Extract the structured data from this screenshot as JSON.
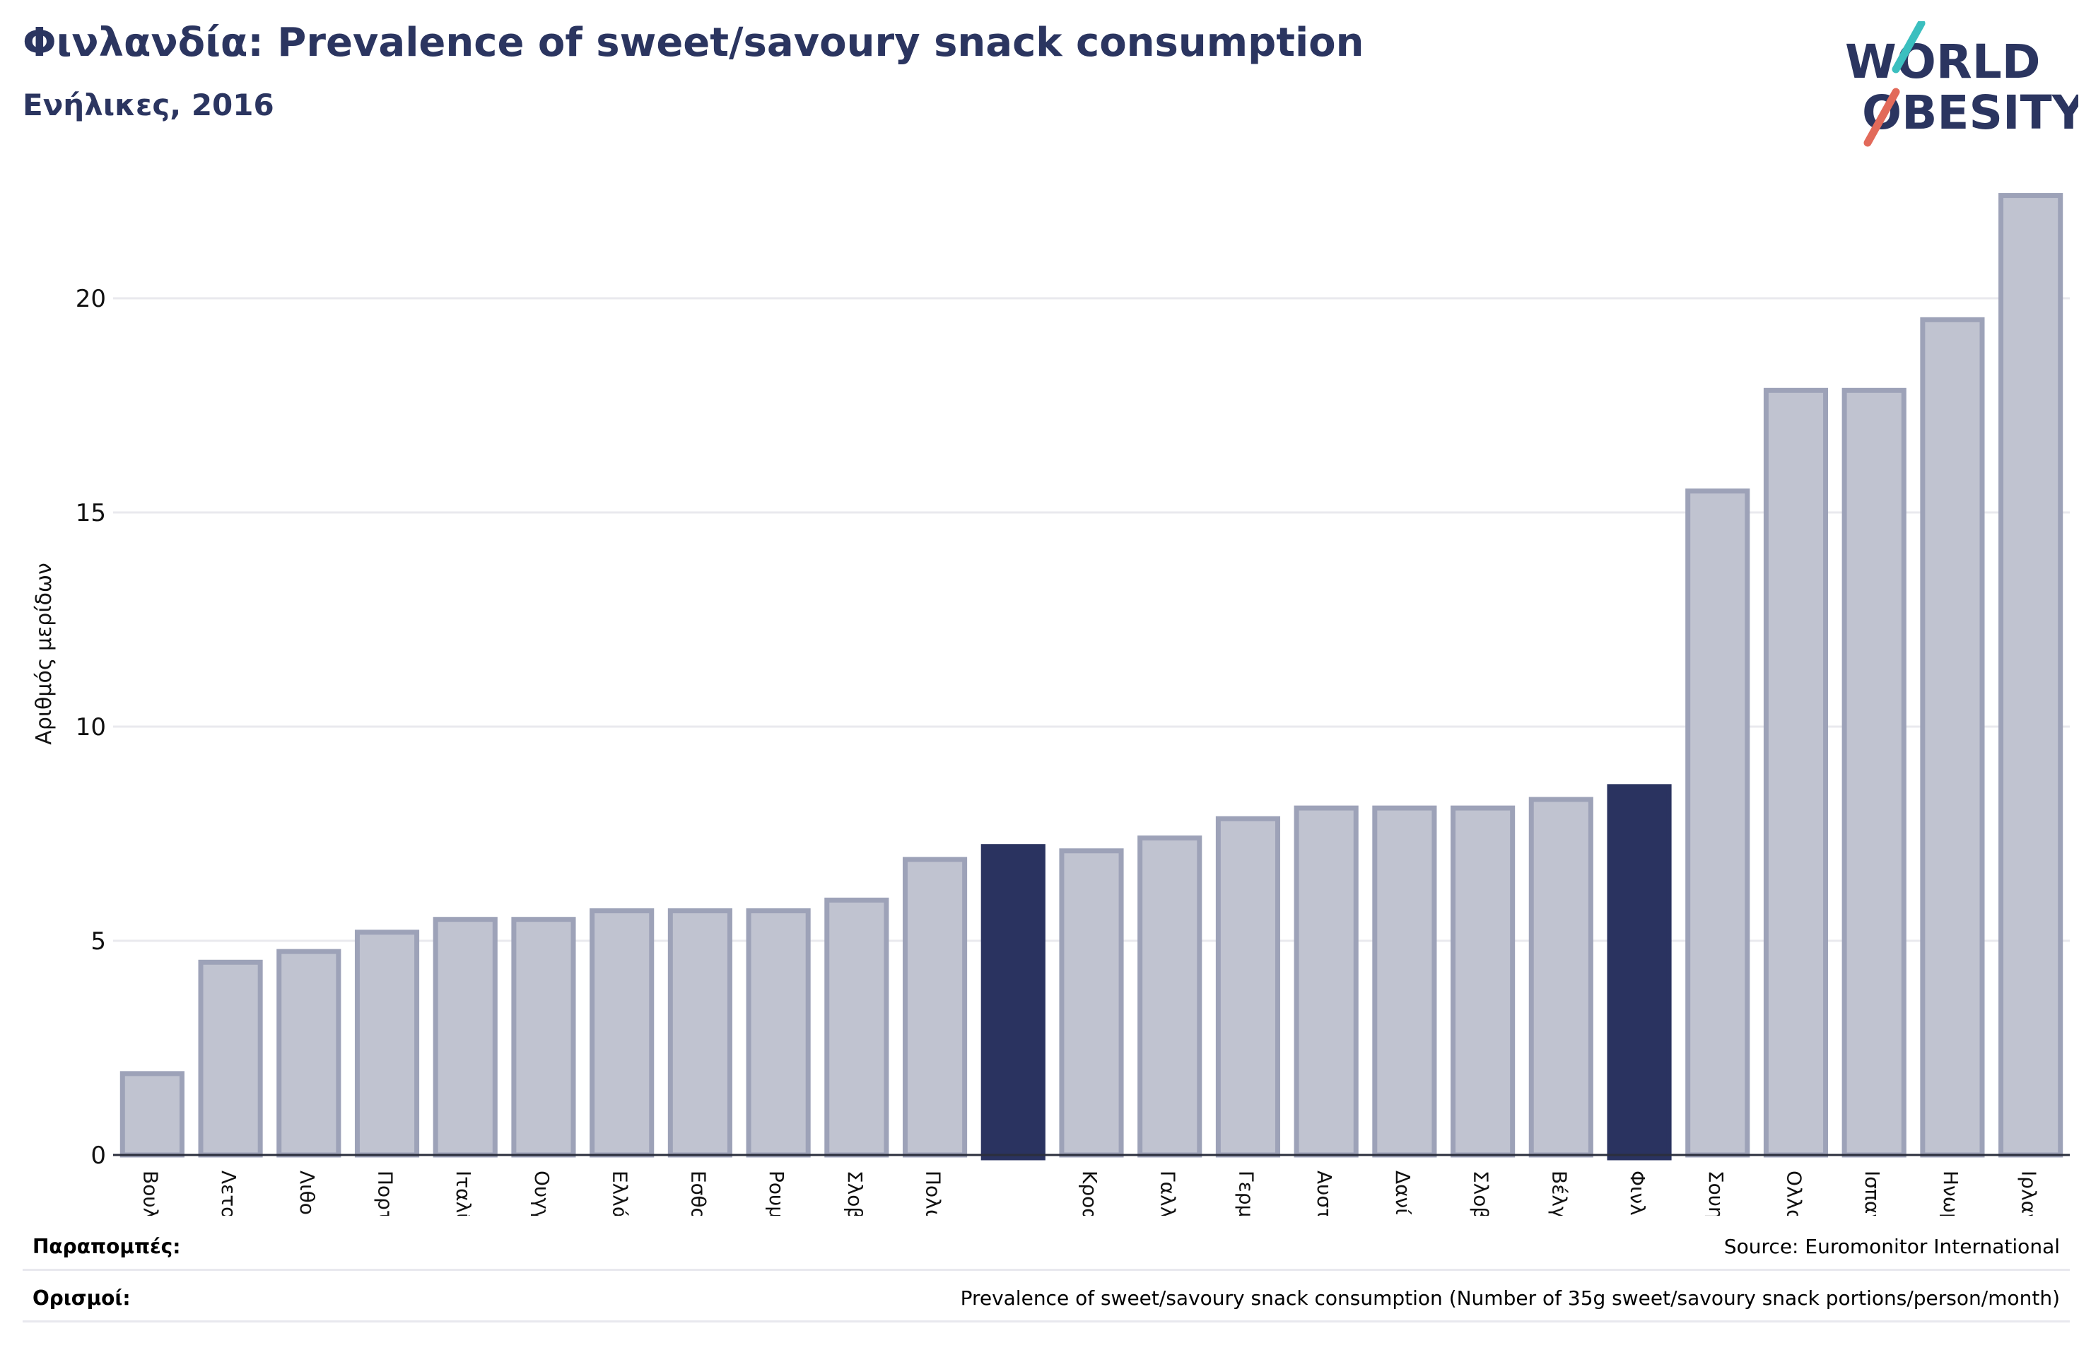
{
  "header": {
    "title": "Φινλανδία: Prevalence of sweet/savoury snack consumption",
    "subtitle": "Ενήλικες, 2016",
    "logo_line1": "WORLD",
    "logo_line2": "OBESITY"
  },
  "colors": {
    "bar": "#c0c3d0",
    "bar_border": "#9da2b8",
    "highlight": "#2a3360",
    "text_dark": "#2b3560",
    "grid": "#e9e9ee",
    "logo_teal": "#3bbfbf",
    "logo_red": "#e26a5a"
  },
  "chart_data": {
    "type": "bar",
    "ylabel": "Αριθμός μερίδων",
    "ylim": [
      0,
      22.5
    ],
    "yticks": [
      0,
      5,
      10,
      15,
      20
    ],
    "grid": true,
    "categories": [
      "Βουλγαρία",
      "Λετονία",
      "Λιθουανία",
      "Πορτογαλία",
      "Ιταλία",
      "Ουγγαρία",
      "Ελλάδα",
      "Εσθονία",
      "Ρουμανία",
      "Σλοβενία",
      "Πολωνία",
      "",
      "Κροατία",
      "Γαλλία",
      "Γερμανία",
      "Αυστρία",
      "Δανία",
      "Σλοβακία",
      "Βέλγιο",
      "Φινλανδία",
      "Σουηδία",
      "Ολλανδία",
      "Ισπανία",
      "Ηνωμένο Βασίλειο",
      "Ιρλανδία"
    ],
    "values": [
      1.9,
      4.5,
      4.75,
      5.2,
      5.5,
      5.5,
      5.7,
      5.7,
      5.7,
      5.95,
      6.9,
      7.2,
      7.1,
      7.4,
      7.85,
      8.1,
      8.1,
      8.1,
      8.3,
      8.6,
      15.5,
      17.85,
      17.85,
      19.5,
      22.4
    ],
    "highlight": [
      "",
      "Φινλανδία"
    ]
  },
  "footer": {
    "references_label": "Παραπομπές:",
    "references_value": "Source: Euromonitor International",
    "definitions_label": "Ορισμοί:",
    "definitions_value": "Prevalence of sweet/savoury snack consumption (Number of 35g sweet/savoury snack portions/person/month)"
  }
}
